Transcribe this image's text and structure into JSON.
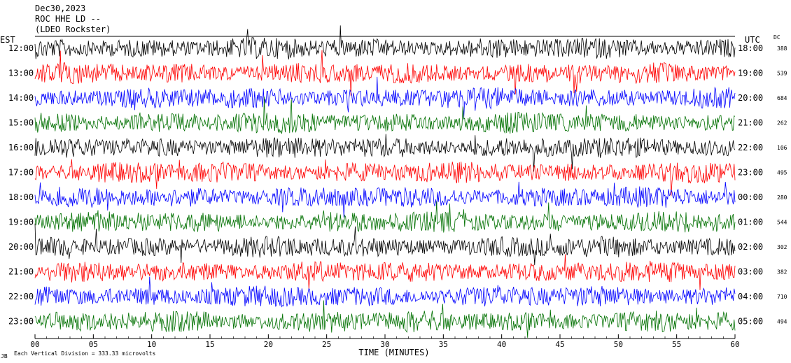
{
  "header": {
    "date": "Dec30,2023",
    "station": "ROC HHE LD --",
    "network": "(LDEO Rockster)"
  },
  "chart_data": {
    "type": "line",
    "title": "Dec30,2023",
    "left_axis_label": "EST",
    "right_axis_label": "UTC",
    "dc_label": "DC",
    "xlabel": "TIME (MINUTES)",
    "x_ticks": [
      "00",
      "05",
      "10",
      "15",
      "20",
      "25",
      "30",
      "35",
      "40",
      "45",
      "50",
      "55",
      "60"
    ],
    "xlim": [
      0,
      60
    ],
    "colors": [
      "#000000",
      "#ff0000",
      "#0000ff",
      "#007000"
    ],
    "rows": [
      {
        "est": "12:00",
        "utc": "18:00",
        "dc": "388",
        "color": "#000000"
      },
      {
        "est": "13:00",
        "utc": "19:00",
        "dc": "539",
        "color": "#ff0000"
      },
      {
        "est": "14:00",
        "utc": "20:00",
        "dc": "684",
        "color": "#0000ff"
      },
      {
        "est": "15:00",
        "utc": "21:00",
        "dc": "262",
        "color": "#007000"
      },
      {
        "est": "16:00",
        "utc": "22:00",
        "dc": "106",
        "color": "#000000"
      },
      {
        "est": "17:00",
        "utc": "23:00",
        "dc": "495",
        "color": "#ff0000"
      },
      {
        "est": "18:00",
        "utc": "00:00",
        "dc": "280",
        "color": "#0000ff"
      },
      {
        "est": "19:00",
        "utc": "01:00",
        "dc": "544",
        "color": "#007000"
      },
      {
        "est": "20:00",
        "utc": "02:00",
        "dc": "302",
        "color": "#000000"
      },
      {
        "est": "21:00",
        "utc": "03:00",
        "dc": "382",
        "color": "#ff0000"
      },
      {
        "est": "22:00",
        "utc": "04:00",
        "dc": "710",
        "color": "#0000ff"
      },
      {
        "est": "23:00",
        "utc": "05:00",
        "dc": "494",
        "color": "#007000"
      }
    ],
    "footer": "Each Vertical Division =  333.33 microvolts",
    "footer_mark": "JB"
  }
}
